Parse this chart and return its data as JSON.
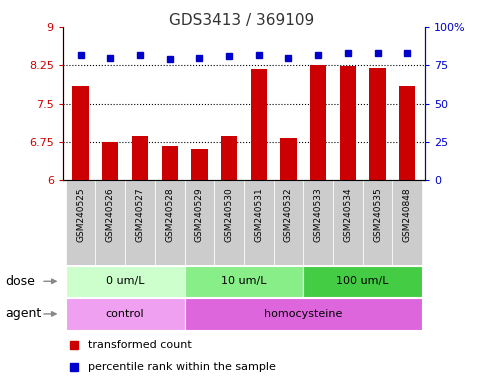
{
  "title": "GDS3413 / 369109",
  "samples": [
    "GSM240525",
    "GSM240526",
    "GSM240527",
    "GSM240528",
    "GSM240529",
    "GSM240530",
    "GSM240531",
    "GSM240532",
    "GSM240533",
    "GSM240534",
    "GSM240535",
    "GSM240848"
  ],
  "transformed_count": [
    7.85,
    6.75,
    6.86,
    6.67,
    6.62,
    6.86,
    8.17,
    6.82,
    8.26,
    8.24,
    8.19,
    7.85
  ],
  "percentile_rank": [
    82,
    80,
    82,
    79,
    80,
    81,
    82,
    80,
    82,
    83,
    83,
    83
  ],
  "ylim_left": [
    6,
    9
  ],
  "ylim_right": [
    0,
    100
  ],
  "yticks_left": [
    6,
    6.75,
    7.5,
    8.25,
    9
  ],
  "yticks_right": [
    0,
    25,
    50,
    75,
    100
  ],
  "ytick_labels_left": [
    "6",
    "6.75",
    "7.5",
    "8.25",
    "9"
  ],
  "ytick_labels_right": [
    "0",
    "25",
    "50",
    "75",
    "100%"
  ],
  "hlines": [
    6.75,
    7.5,
    8.25
  ],
  "bar_color": "#cc0000",
  "dot_color": "#0000cc",
  "dose_groups": [
    {
      "label": "0 um/L",
      "start": 0,
      "end": 4,
      "color": "#ccffcc"
    },
    {
      "label": "10 um/L",
      "start": 4,
      "end": 8,
      "color": "#88ee88"
    },
    {
      "label": "100 um/L",
      "start": 8,
      "end": 12,
      "color": "#44cc44"
    }
  ],
  "agent_groups": [
    {
      "label": "control",
      "start": 0,
      "end": 4,
      "color": "#f0a0f0"
    },
    {
      "label": "homocysteine",
      "start": 4,
      "end": 12,
      "color": "#dd66dd"
    }
  ],
  "dose_label": "dose",
  "agent_label": "agent",
  "legend_bar_label": "transformed count",
  "legend_dot_label": "percentile rank within the sample",
  "bar_color_hex": "#cc0000",
  "dot_color_hex": "#0000cc",
  "left_color": "#cc0000",
  "right_color": "#0000cc",
  "sample_bg_color": "#cccccc",
  "border_color": "#000000"
}
